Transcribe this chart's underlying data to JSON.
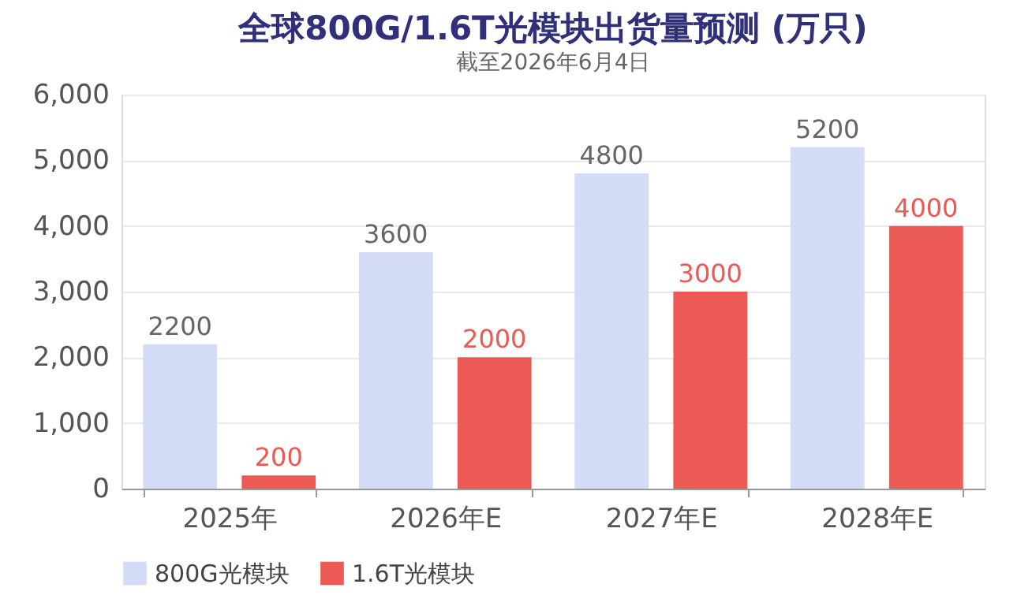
{
  "chart_data": {
    "type": "bar",
    "title": "全球800G/1.6T光模块出货量预测 (万只)",
    "subtitle": "截至2026年6月4日",
    "categories": [
      "2025年",
      "2026年E",
      "2027年E",
      "2028年E"
    ],
    "series": [
      {
        "name": "800G光模块",
        "color": "#d3dbf7",
        "values": [
          2200,
          3600,
          4800,
          5200
        ]
      },
      {
        "name": "1.6T光模块",
        "color": "#eb5a55",
        "values": [
          200,
          2000,
          3000,
          4000
        ]
      }
    ],
    "ylim": [
      0,
      6000
    ],
    "yticks": [
      0,
      {
        "value": 1000,
        "label": "1,000"
      },
      {
        "value": 2000,
        "label": "2,000"
      },
      {
        "value": 3000,
        "label": "3,000"
      },
      {
        "value": 4000,
        "label": "4,000"
      },
      {
        "value": 5000,
        "label": "5,000"
      },
      {
        "value": 6000,
        "label": "6,000"
      }
    ],
    "grid": "y",
    "legend": "bottom",
    "data_labels": true
  }
}
